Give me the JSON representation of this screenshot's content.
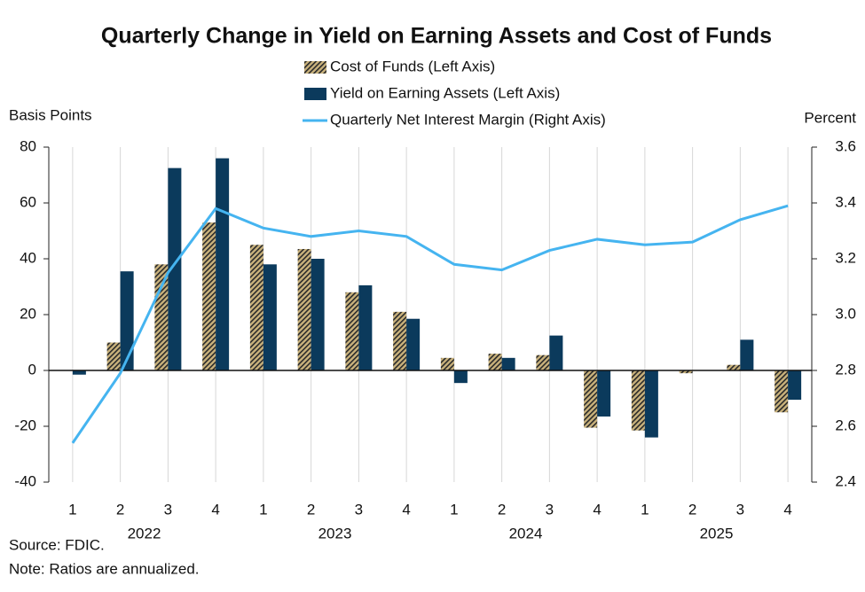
{
  "chart_data": {
    "type": "bar",
    "title": "Quarterly Change in Yield on Earning Assets and Cost of Funds",
    "y_label": "Basis Points",
    "y2_label": "Percent",
    "categories": [
      "1",
      "2",
      "3",
      "4",
      "1",
      "2",
      "3",
      "4",
      "1",
      "2",
      "3",
      "4",
      "1",
      "2",
      "3",
      "4"
    ],
    "groups": [
      "2022",
      "2023",
      "2024",
      "2025"
    ],
    "series": [
      {
        "name": "Cost of Funds (Left Axis)",
        "type": "bar",
        "color": "#c9b27c",
        "hatch": "#2a2a2a",
        "values": [
          0,
          10,
          38,
          53,
          45,
          43.5,
          28,
          21,
          4.5,
          6,
          5.5,
          -20.5,
          -21.5,
          -1,
          2,
          -15
        ]
      },
      {
        "name": "Yield on Earning Assets (Left Axis)",
        "type": "bar",
        "color": "#0b3a5c",
        "values": [
          -1.5,
          35.5,
          72.5,
          76,
          38,
          40,
          30.5,
          18.5,
          -4.5,
          4.5,
          12.5,
          -16.5,
          -24,
          0,
          11,
          -10.5
        ]
      },
      {
        "name": "Quarterly Net Interest Margin (Right Axis)",
        "type": "line",
        "axis": "y2",
        "color": "#45b4f0",
        "values": [
          2.54,
          2.79,
          3.15,
          3.38,
          3.31,
          3.28,
          3.3,
          3.28,
          3.18,
          3.16,
          3.23,
          3.27,
          3.25,
          3.26,
          3.34,
          3.39
        ]
      }
    ],
    "ylim": [
      -40,
      80
    ],
    "yticks": [
      -40,
      -20,
      0,
      20,
      40,
      60,
      80
    ],
    "y2lim": [
      2.4,
      3.6
    ],
    "y2ticks": [
      2.4,
      2.6,
      2.8,
      {
        "value": 3,
        "label": "3.0"
      },
      3.2,
      3.4,
      3.6
    ],
    "grid": true,
    "source": "Source: FDIC.",
    "note": "Note: Ratios are annualized."
  }
}
